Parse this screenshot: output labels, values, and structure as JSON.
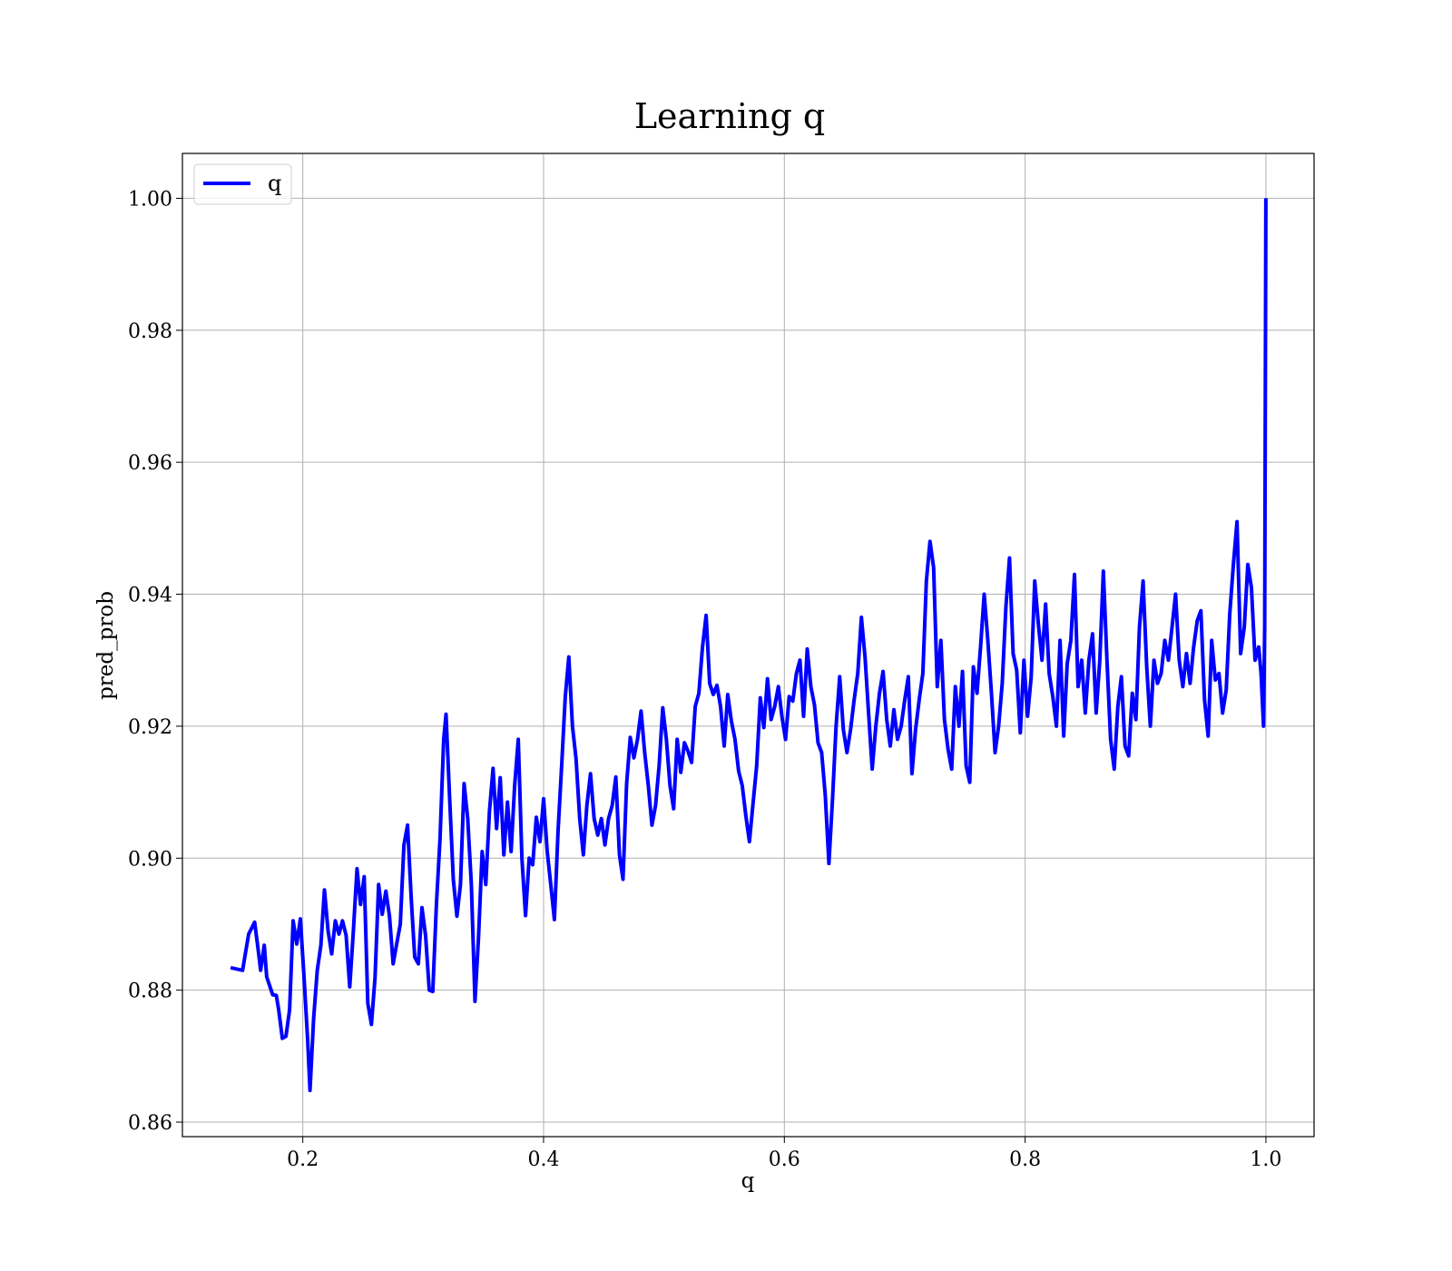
{
  "chart_data": {
    "type": "line",
    "title": "Learning q",
    "xlabel": "q",
    "ylabel": "pred_prob",
    "xlim": [
      0.1,
      1.04
    ],
    "ylim": [
      0.8578,
      1.0068
    ],
    "xticks": [
      0.2,
      0.4,
      0.6,
      0.8,
      1.0
    ],
    "xtick_labels": [
      "0.2",
      "0.4",
      "0.6",
      "0.8",
      "1.0"
    ],
    "yticks": [
      0.86,
      0.88,
      0.9,
      0.92,
      0.94,
      0.96,
      0.98,
      1.0
    ],
    "ytick_labels": [
      "0.86",
      "0.88",
      "0.90",
      "0.92",
      "0.94",
      "0.96",
      "0.98",
      "1.00"
    ],
    "grid": true,
    "legend_position": "top-left",
    "series": [
      {
        "name": "q",
        "color": "#0000ff",
        "x": [
          0.14,
          0.15,
          0.155,
          0.16,
          0.163,
          0.165,
          0.168,
          0.17,
          0.175,
          0.178,
          0.18,
          0.183,
          0.186,
          0.189,
          0.192,
          0.195,
          0.198,
          0.201,
          0.204,
          0.206,
          0.209,
          0.212,
          0.215,
          0.218,
          0.221,
          0.224,
          0.227,
          0.23,
          0.233,
          0.236,
          0.239,
          0.242,
          0.245,
          0.248,
          0.251,
          0.254,
          0.257,
          0.26,
          0.263,
          0.266,
          0.269,
          0.272,
          0.275,
          0.278,
          0.281,
          0.284,
          0.287,
          0.29,
          0.293,
          0.296,
          0.299,
          0.302,
          0.305,
          0.308,
          0.311,
          0.314,
          0.317,
          0.319,
          0.322,
          0.325,
          0.328,
          0.331,
          0.334,
          0.337,
          0.34,
          0.343,
          0.346,
          0.349,
          0.352,
          0.355,
          0.358,
          0.361,
          0.364,
          0.367,
          0.37,
          0.373,
          0.376,
          0.379,
          0.382,
          0.385,
          0.388,
          0.391,
          0.394,
          0.397,
          0.4,
          0.403,
          0.406,
          0.409,
          0.412,
          0.415,
          0.418,
          0.421,
          0.424,
          0.427,
          0.43,
          0.433,
          0.436,
          0.439,
          0.442,
          0.445,
          0.448,
          0.451,
          0.454,
          0.457,
          0.46,
          0.463,
          0.466,
          0.469,
          0.472,
          0.475,
          0.478,
          0.481,
          0.484,
          0.487,
          0.49,
          0.493,
          0.496,
          0.499,
          0.502,
          0.505,
          0.508,
          0.511,
          0.514,
          0.517,
          0.52,
          0.523,
          0.526,
          0.529,
          0.532,
          0.535,
          0.538,
          0.541,
          0.544,
          0.547,
          0.55,
          0.553,
          0.556,
          0.559,
          0.562,
          0.565,
          0.568,
          0.571,
          0.574,
          0.577,
          0.58,
          0.583,
          0.586,
          0.589,
          0.592,
          0.595,
          0.598,
          0.601,
          0.604,
          0.607,
          0.61,
          0.613,
          0.616,
          0.619,
          0.622,
          0.625,
          0.628,
          0.631,
          0.634,
          0.637,
          0.64,
          0.643,
          0.646,
          0.649,
          0.652,
          0.655,
          0.658,
          0.661,
          0.664,
          0.667,
          0.67,
          0.673,
          0.676,
          0.679,
          0.682,
          0.685,
          0.688,
          0.691,
          0.694,
          0.697,
          0.7,
          0.703,
          0.706,
          0.709,
          0.712,
          0.715,
          0.718,
          0.721,
          0.724,
          0.727,
          0.73,
          0.733,
          0.736,
          0.739,
          0.742,
          0.745,
          0.748,
          0.751,
          0.754,
          0.757,
          0.76,
          0.763,
          0.766,
          0.769,
          0.772,
          0.775,
          0.778,
          0.781,
          0.784,
          0.787,
          0.79,
          0.793,
          0.796,
          0.799,
          0.802,
          0.805,
          0.808,
          0.811,
          0.814,
          0.817,
          0.82,
          0.823,
          0.826,
          0.829,
          0.832,
          0.835,
          0.838,
          0.841,
          0.844,
          0.847,
          0.85,
          0.853,
          0.856,
          0.859,
          0.862,
          0.865,
          0.868,
          0.871,
          0.874,
          0.877,
          0.88,
          0.883,
          0.886,
          0.889,
          0.892,
          0.895,
          0.898,
          0.901,
          0.904,
          0.907,
          0.91,
          0.913,
          0.916,
          0.919,
          0.922,
          0.925,
          0.928,
          0.931,
          0.934,
          0.937,
          0.94,
          0.943,
          0.946,
          0.949,
          0.952,
          0.955,
          0.958,
          0.961,
          0.964,
          0.967,
          0.97,
          0.973,
          0.976,
          0.979,
          0.982,
          0.985,
          0.988,
          0.991,
          0.994,
          0.996,
          0.998,
          0.999,
          1.0
        ],
        "y": [
          0.8834,
          0.883,
          0.8885,
          0.8903,
          0.886,
          0.883,
          0.8868,
          0.882,
          0.8793,
          0.8792,
          0.877,
          0.8727,
          0.873,
          0.877,
          0.8905,
          0.887,
          0.8908,
          0.882,
          0.8725,
          0.8648,
          0.8757,
          0.883,
          0.8868,
          0.8952,
          0.889,
          0.8855,
          0.8905,
          0.8885,
          0.8905,
          0.8883,
          0.8805,
          0.889,
          0.8984,
          0.893,
          0.8972,
          0.878,
          0.8748,
          0.882,
          0.896,
          0.8915,
          0.895,
          0.8912,
          0.884,
          0.887,
          0.89,
          0.902,
          0.905,
          0.894,
          0.885,
          0.884,
          0.8925,
          0.8882,
          0.88,
          0.8798,
          0.893,
          0.903,
          0.918,
          0.9218,
          0.909,
          0.8968,
          0.8912,
          0.896,
          0.9113,
          0.906,
          0.896,
          0.8783,
          0.888,
          0.901,
          0.896,
          0.907,
          0.9136,
          0.9045,
          0.9122,
          0.9005,
          0.9085,
          0.901,
          0.911,
          0.918,
          0.9,
          0.8913,
          0.9,
          0.899,
          0.9062,
          0.9025,
          0.909,
          0.901,
          0.896,
          0.8907,
          0.904,
          0.914,
          0.9245,
          0.9305,
          0.92,
          0.915,
          0.906,
          0.9005,
          0.908,
          0.9128,
          0.906,
          0.9035,
          0.906,
          0.902,
          0.906,
          0.908,
          0.9123,
          0.9005,
          0.8968,
          0.9113,
          0.9183,
          0.9152,
          0.918,
          0.9223,
          0.916,
          0.911,
          0.905,
          0.908,
          0.914,
          0.9228,
          0.918,
          0.911,
          0.9075,
          0.918,
          0.913,
          0.9175,
          0.9162,
          0.9145,
          0.923,
          0.925,
          0.932,
          0.9368,
          0.9265,
          0.9248,
          0.9262,
          0.923,
          0.917,
          0.9248,
          0.9208,
          0.918,
          0.9132,
          0.911,
          0.9065,
          0.9025,
          0.9083,
          0.914,
          0.9243,
          0.9198,
          0.9272,
          0.921,
          0.923,
          0.926,
          0.9215,
          0.918,
          0.9245,
          0.9238,
          0.928,
          0.93,
          0.9215,
          0.9317,
          0.926,
          0.9232,
          0.9175,
          0.916,
          0.9095,
          0.8992,
          0.909,
          0.92,
          0.9275,
          0.9195,
          0.916,
          0.9195,
          0.924,
          0.928,
          0.9365,
          0.9305,
          0.9218,
          0.9135,
          0.92,
          0.925,
          0.9283,
          0.921,
          0.917,
          0.9225,
          0.918,
          0.92,
          0.924,
          0.9275,
          0.9128,
          0.9195,
          0.924,
          0.928,
          0.942,
          0.948,
          0.944,
          0.926,
          0.933,
          0.921,
          0.9165,
          0.9135,
          0.926,
          0.92,
          0.9283,
          0.914,
          0.9115,
          0.929,
          0.925,
          0.932,
          0.94,
          0.933,
          0.925,
          0.916,
          0.92,
          0.9265,
          0.938,
          0.9455,
          0.931,
          0.9285,
          0.919,
          0.93,
          0.9215,
          0.9275,
          0.942,
          0.9355,
          0.93,
          0.9385,
          0.928,
          0.9245,
          0.92,
          0.933,
          0.9185,
          0.9295,
          0.933,
          0.943,
          0.926,
          0.93,
          0.922,
          0.93,
          0.934,
          0.922,
          0.93,
          0.9435,
          0.93,
          0.918,
          0.9135,
          0.923,
          0.9275,
          0.917,
          0.9155,
          0.925,
          0.921,
          0.935,
          0.942,
          0.929,
          0.92,
          0.93,
          0.9265,
          0.928,
          0.933,
          0.93,
          0.935,
          0.94,
          0.93,
          0.926,
          0.931,
          0.9265,
          0.932,
          0.936,
          0.9375,
          0.924,
          0.9185,
          0.933,
          0.927,
          0.928,
          0.922,
          0.9255,
          0.937,
          0.9445,
          0.951,
          0.931,
          0.935,
          0.9445,
          0.941,
          0.93,
          0.932,
          0.928,
          0.92,
          0.935,
          1.0
        ]
      }
    ]
  }
}
